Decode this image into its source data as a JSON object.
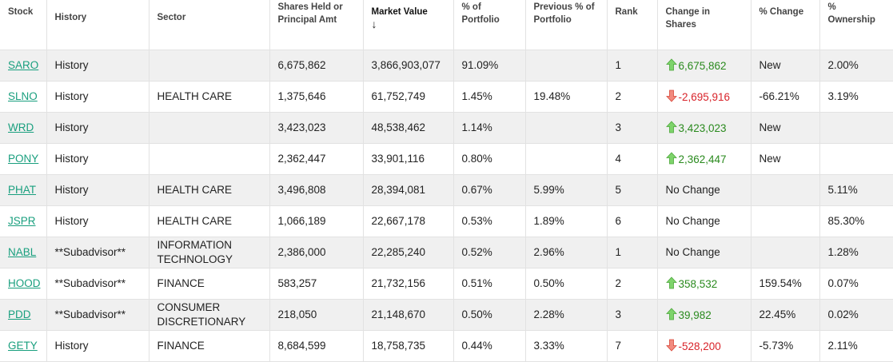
{
  "columns": [
    {
      "key": "stock",
      "label": "Stock"
    },
    {
      "key": "history",
      "label": "History"
    },
    {
      "key": "sector",
      "label": "Sector"
    },
    {
      "key": "shares",
      "label": "Shares Held or Principal Amt"
    },
    {
      "key": "market_value",
      "label": "Market Value",
      "sort_icon": "arrow-down-icon"
    },
    {
      "key": "pct_portfolio",
      "label": "% of Portfolio"
    },
    {
      "key": "prev_pct_portfolio",
      "label": "Previous % of Portfolio"
    },
    {
      "key": "rank",
      "label": "Rank"
    },
    {
      "key": "change_shares",
      "label": "Change in Shares"
    },
    {
      "key": "pct_change",
      "label": "% Change"
    },
    {
      "key": "pct_ownership",
      "label": "% Ownership"
    }
  ],
  "colors": {
    "link": "#199f7e",
    "up": "#2a8a1e",
    "down": "#d8232a",
    "row_shade": "#f0f0f0"
  },
  "rows": [
    {
      "stock": "SARO",
      "history": "History",
      "history_link": true,
      "sector": "",
      "shares": "6,675,862",
      "market_value": "3,866,903,077",
      "pct_portfolio": "91.09%",
      "prev_pct_portfolio": "",
      "rank": "1",
      "change_dir": "up",
      "change_shares": "6,675,862",
      "pct_change": "New",
      "pct_ownership": "2.00%"
    },
    {
      "stock": "SLNO",
      "history": "History",
      "history_link": true,
      "sector": "HEALTH CARE",
      "shares": "1,375,646",
      "market_value": "61,752,749",
      "pct_portfolio": "1.45%",
      "prev_pct_portfolio": "19.48%",
      "rank": "2",
      "change_dir": "down",
      "change_shares": "-2,695,916",
      "pct_change": "-66.21%",
      "pct_ownership": "3.19%"
    },
    {
      "stock": "WRD",
      "history": "History",
      "history_link": true,
      "sector": "",
      "shares": "3,423,023",
      "market_value": "48,538,462",
      "pct_portfolio": "1.14%",
      "prev_pct_portfolio": "",
      "rank": "3",
      "change_dir": "up",
      "change_shares": "3,423,023",
      "pct_change": "New",
      "pct_ownership": ""
    },
    {
      "stock": "PONY",
      "history": "History",
      "history_link": true,
      "sector": "",
      "shares": "2,362,447",
      "market_value": "33,901,116",
      "pct_portfolio": "0.80%",
      "prev_pct_portfolio": "",
      "rank": "4",
      "change_dir": "up",
      "change_shares": "2,362,447",
      "pct_change": "New",
      "pct_ownership": ""
    },
    {
      "stock": "PHAT",
      "history": "History",
      "history_link": true,
      "sector": "HEALTH CARE",
      "shares": "3,496,808",
      "market_value": "28,394,081",
      "pct_portfolio": "0.67%",
      "prev_pct_portfolio": "5.99%",
      "rank": "5",
      "change_dir": "none",
      "change_shares": "No Change",
      "pct_change": "",
      "pct_ownership": "5.11%"
    },
    {
      "stock": "JSPR",
      "history": "History",
      "history_link": true,
      "sector": "HEALTH CARE",
      "shares": "1,066,189",
      "market_value": "22,667,178",
      "pct_portfolio": "0.53%",
      "prev_pct_portfolio": "1.89%",
      "rank": "6",
      "change_dir": "none",
      "change_shares": "No Change",
      "pct_change": "",
      "pct_ownership": "85.30%"
    },
    {
      "stock": "NABL",
      "history": "**Subadvisor**",
      "history_link": false,
      "sector": "INFORMATION TECHNOLOGY",
      "shares": "2,386,000",
      "market_value": "22,285,240",
      "pct_portfolio": "0.52%",
      "prev_pct_portfolio": "2.96%",
      "rank": "1",
      "change_dir": "none",
      "change_shares": "No Change",
      "pct_change": "",
      "pct_ownership": "1.28%"
    },
    {
      "stock": "HOOD",
      "history": "**Subadvisor**",
      "history_link": false,
      "sector": "FINANCE",
      "shares": "583,257",
      "market_value": "21,732,156",
      "pct_portfolio": "0.51%",
      "prev_pct_portfolio": "0.50%",
      "rank": "2",
      "change_dir": "up",
      "change_shares": "358,532",
      "pct_change": "159.54%",
      "pct_ownership": "0.07%"
    },
    {
      "stock": "PDD",
      "history": "**Subadvisor**",
      "history_link": false,
      "sector": "CONSUMER DISCRETIONARY",
      "shares": "218,050",
      "market_value": "21,148,670",
      "pct_portfolio": "0.50%",
      "prev_pct_portfolio": "2.28%",
      "rank": "3",
      "change_dir": "up",
      "change_shares": "39,982",
      "pct_change": "22.45%",
      "pct_ownership": "0.02%"
    },
    {
      "stock": "GETY",
      "history": "History",
      "history_link": true,
      "sector": "FINANCE",
      "shares": "8,684,599",
      "market_value": "18,758,735",
      "pct_portfolio": "0.44%",
      "prev_pct_portfolio": "3.33%",
      "rank": "7",
      "change_dir": "down",
      "change_shares": "-528,200",
      "pct_change": "-5.73%",
      "pct_ownership": "2.11%"
    }
  ]
}
